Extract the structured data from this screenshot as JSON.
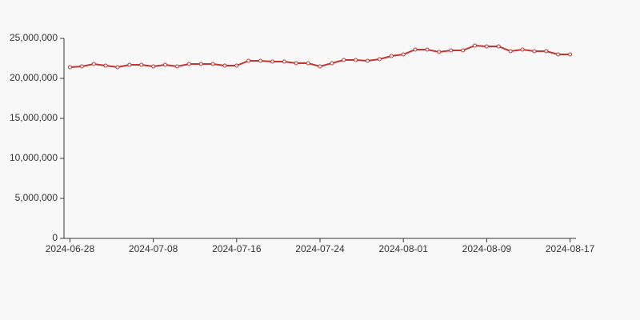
{
  "chart_data": {
    "type": "line",
    "categories": [
      "2024-06-28",
      null,
      null,
      null,
      null,
      null,
      null,
      "2024-07-08",
      null,
      null,
      null,
      null,
      null,
      null,
      "2024-07-16",
      null,
      null,
      null,
      null,
      null,
      null,
      "2024-07-24",
      null,
      null,
      null,
      null,
      null,
      null,
      "2024-08-01",
      null,
      null,
      null,
      null,
      null,
      null,
      "2024-08-09",
      null,
      null,
      null,
      null,
      null,
      null,
      "2024-08-17"
    ],
    "series": [
      {
        "color": "#c23531",
        "values": [
          21400000,
          21500000,
          21800000,
          21600000,
          21400000,
          21700000,
          21700000,
          21500000,
          21700000,
          21500000,
          21800000,
          21800000,
          21800000,
          21600000,
          21600000,
          22200000,
          22200000,
          22100000,
          22100000,
          21900000,
          21900000,
          21500000,
          21900000,
          22300000,
          22300000,
          22200000,
          22400000,
          22800000,
          23000000,
          23600000,
          23600000,
          23300000,
          23500000,
          23500000,
          24100000,
          24000000,
          24000000,
          23400000,
          23600000,
          23400000,
          23400000,
          23000000,
          23000000
        ]
      }
    ],
    "ylim": [
      0,
      25000000
    ],
    "yticks": [
      0,
      {
        "value": 5000000,
        "label": "5,000,000"
      },
      {
        "value": 10000000,
        "label": "10,000,000"
      },
      {
        "value": 15000000,
        "label": "15,000,000"
      },
      {
        "value": 20000000,
        "label": "20,000,000"
      },
      {
        "value": 25000000,
        "label": "25,000,000"
      }
    ]
  }
}
